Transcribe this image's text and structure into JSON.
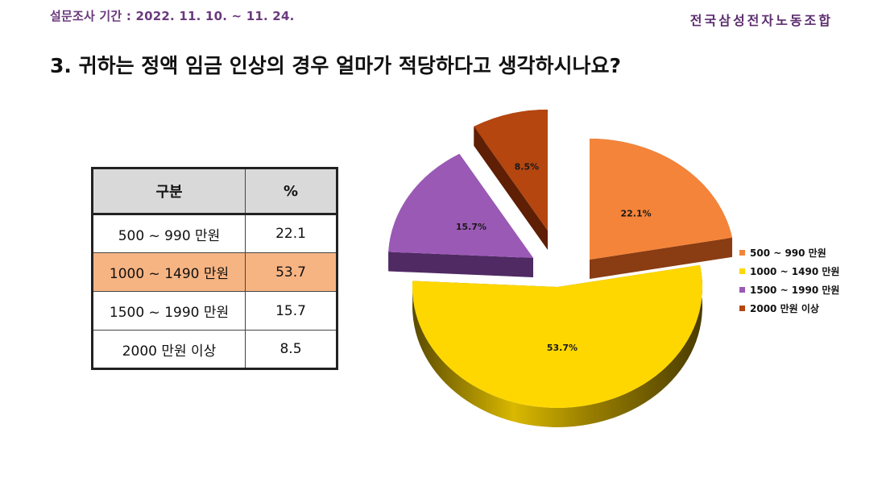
{
  "header": {
    "survey_period": "설문조사 기간 : 2022. 11. 10. ~ 11. 24.",
    "union_name": "전국삼성전자노동조합"
  },
  "question": "3. 귀하는 정액 임금 인상의 경우 얼마가 적당하다고 생각하시나요?",
  "table": {
    "headers": [
      "구분",
      "%"
    ],
    "rows": [
      {
        "category": "500 ~ 990 만원",
        "value": "22.1"
      },
      {
        "category": "1000 ~ 1490 만원",
        "value": "53.7"
      },
      {
        "category": "1500 ~ 1990 만원",
        "value": "15.7"
      },
      {
        "category": "2000 만원 이상",
        "value": "8.5"
      }
    ],
    "highlight_row_color": "#f7b483"
  },
  "chart_data": {
    "type": "pie",
    "style": "3d-exploded",
    "categories": [
      "500 ~ 990 만원",
      "1000 ~ 1490 만원",
      "1500 ~ 1990 만원",
      "2000 만원 이상"
    ],
    "values": [
      22.1,
      53.7,
      15.7,
      8.5
    ],
    "data_labels": [
      "22.1%",
      "53.7%",
      "15.7%",
      "8.5%"
    ],
    "colors": [
      "#f4843a",
      "#ffd700",
      "#9b59b6",
      "#b5460f"
    ],
    "side_colors": [
      "#8a3c12",
      "#6e5a00",
      "#4f2a63",
      "#5e1f05"
    ],
    "legend_position": "right"
  }
}
